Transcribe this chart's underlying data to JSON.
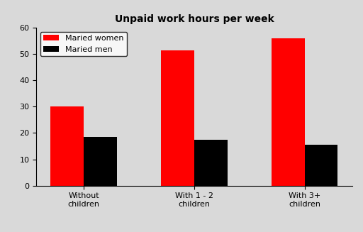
{
  "title": "Unpaid work hours per week",
  "categories": [
    "Without\nchildren",
    "With 1 - 2\nchildren",
    "With 3+\nchildren"
  ],
  "women_values": [
    30,
    51.5,
    56
  ],
  "men_values": [
    18.5,
    17.5,
    15.5
  ],
  "women_label": "Maried women",
  "men_label": "Maried men",
  "women_color": "#ff0000",
  "men_color": "#000000",
  "ylim": [
    0,
    60
  ],
  "yticks": [
    0,
    10,
    20,
    30,
    40,
    50,
    60
  ],
  "bar_width": 0.3,
  "title_fontsize": 10,
  "legend_fontsize": 8,
  "tick_fontsize": 8,
  "background_color": "#d9d9d9"
}
